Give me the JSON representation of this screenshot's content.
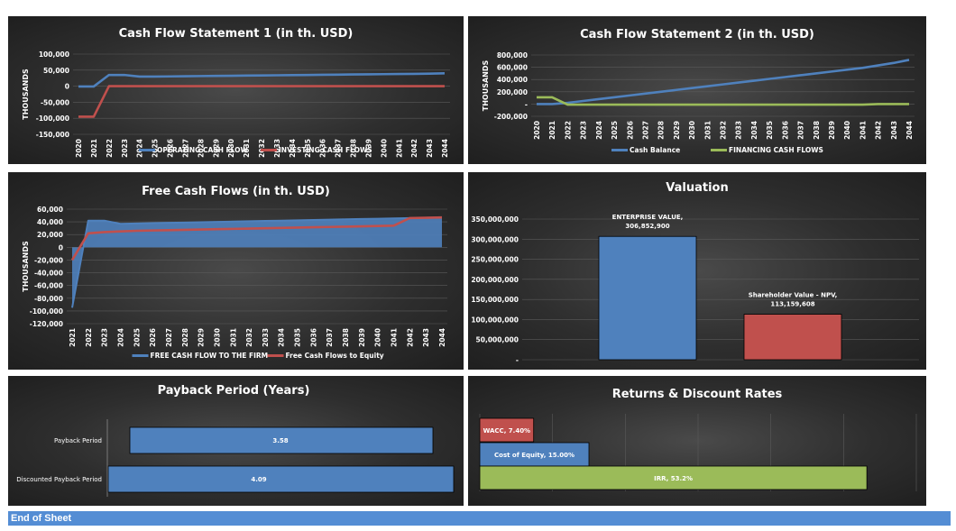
{
  "colors": {
    "blue": "#4f81bd",
    "blue_fill": "#3a6fb8",
    "red": "#c0504d",
    "green": "#9bbb59",
    "text": "#ffffff",
    "grid": "#5a5a5a"
  },
  "footer": {
    "label": "End of Sheet"
  },
  "chart_data": [
    {
      "id": "cf1",
      "type": "line",
      "title": "Cash Flow Statement 1 (in th. USD)",
      "ylabel": "THOUSANDS",
      "ylim": [
        -150000,
        100000
      ],
      "yticks": [
        -150000,
        -100000,
        -50000,
        0,
        50000,
        100000
      ],
      "ytick_labels": [
        "-150,000",
        "-100,000",
        "-50,000",
        "0",
        "50,000",
        "100,000"
      ],
      "x": [
        "2020",
        "2021",
        "2022",
        "2023",
        "2024",
        "2025",
        "2026",
        "2027",
        "2028",
        "2029",
        "2030",
        "2031",
        "2032",
        "2033",
        "2034",
        "2035",
        "2036",
        "2037",
        "2038",
        "2039",
        "2040",
        "2041",
        "2042",
        "2043",
        "2044"
      ],
      "legend": "bottom",
      "series": [
        {
          "name": "OPERATING CASH FLOW",
          "color": "#4f81bd",
          "values": [
            -1000,
            -1000,
            35000,
            35000,
            30000,
            30000,
            30500,
            31000,
            31500,
            32000,
            32500,
            33000,
            33500,
            34000,
            34500,
            35000,
            35500,
            36000,
            36500,
            37000,
            37500,
            38000,
            38500,
            39000,
            40000
          ]
        },
        {
          "name": "INVESTING CASH FLOWS",
          "color": "#c0504d",
          "values": [
            -95000,
            -95000,
            0,
            0,
            0,
            0,
            0,
            0,
            0,
            0,
            0,
            0,
            0,
            0,
            0,
            0,
            0,
            0,
            0,
            0,
            0,
            0,
            0,
            0,
            0
          ]
        }
      ]
    },
    {
      "id": "cf2",
      "type": "line",
      "title": "Cash Flow Statement 2 (in th. USD)",
      "ylabel": "THOUSANDS",
      "ylim": [
        -200000,
        800000
      ],
      "yticks": [
        -200000,
        0,
        200000,
        400000,
        600000,
        800000
      ],
      "ytick_labels": [
        "-200,000",
        "-",
        "200,000",
        "400,000",
        "600,000",
        "800,000"
      ],
      "x": [
        "2020",
        "2021",
        "2022",
        "2023",
        "2024",
        "2025",
        "2026",
        "2027",
        "2028",
        "2029",
        "2030",
        "2031",
        "2032",
        "2033",
        "2034",
        "2035",
        "2036",
        "2037",
        "2038",
        "2039",
        "2040",
        "2041",
        "2042",
        "2043",
        "2044"
      ],
      "legend": "bottom",
      "series": [
        {
          "name": "Cash Balance",
          "color": "#4f81bd",
          "values": [
            0,
            0,
            20000,
            50000,
            80000,
            110000,
            140000,
            170000,
            200000,
            230000,
            260000,
            290000,
            320000,
            350000,
            380000,
            410000,
            440000,
            470000,
            500000,
            530000,
            560000,
            590000,
            630000,
            670000,
            720000
          ]
        },
        {
          "name": "FINANCING CASH FLOWS",
          "color": "#9bbb59",
          "values": [
            110000,
            110000,
            -10000,
            -10000,
            -10000,
            -10000,
            -10000,
            -10000,
            -10000,
            -10000,
            -10000,
            -10000,
            -10000,
            -10000,
            -10000,
            -10000,
            -10000,
            -10000,
            -10000,
            -10000,
            -10000,
            -10000,
            0,
            0,
            0
          ]
        }
      ]
    },
    {
      "id": "fcf",
      "type": "area",
      "title": "Free Cash Flows (in th. USD)",
      "ylabel": "THOUSANDS",
      "ylim": [
        -120000,
        60000
      ],
      "yticks": [
        -120000,
        -100000,
        -80000,
        -60000,
        -40000,
        -20000,
        0,
        20000,
        40000,
        60000
      ],
      "ytick_labels": [
        "-120,000",
        "-100,000",
        "-80,000",
        "-60,000",
        "-40,000",
        "-20,000",
        "0",
        "20,000",
        "40,000",
        "60,000"
      ],
      "x": [
        "2021",
        "2022",
        "2023",
        "2024",
        "2025",
        "2026",
        "2027",
        "2028",
        "2029",
        "2030",
        "2031",
        "2032",
        "2033",
        "2034",
        "2035",
        "2036",
        "2037",
        "2038",
        "2039",
        "2040",
        "2041",
        "2042",
        "2043",
        "2044"
      ],
      "legend": "bottom",
      "series": [
        {
          "name": "FREE CASH FLOW TO THE FIRM",
          "color": "#4f81bd",
          "values": [
            -95000,
            42000,
            42000,
            37000,
            37500,
            38000,
            38500,
            39000,
            39500,
            40000,
            40500,
            41000,
            41500,
            42000,
            42500,
            43000,
            43500,
            44000,
            44500,
            45000,
            45500,
            46000,
            46500,
            47000
          ]
        },
        {
          "name": "Free Cash Flows to Equity",
          "color": "#c0504d",
          "values": [
            -20000,
            22000,
            24000,
            25000,
            26000,
            26500,
            27000,
            27500,
            28000,
            28500,
            29000,
            29500,
            30000,
            30500,
            31000,
            31500,
            32000,
            32500,
            33000,
            33500,
            34000,
            46000,
            46500,
            47000
          ]
        }
      ]
    },
    {
      "id": "valuation",
      "type": "bar",
      "title": "Valuation",
      "ylim": [
        0,
        350000000
      ],
      "yticks": [
        0,
        50000000,
        100000000,
        150000000,
        200000000,
        250000000,
        300000000,
        350000000
      ],
      "ytick_labels": [
        "-",
        "50,000,000",
        "100,000,000",
        "150,000,000",
        "200,000,000",
        "250,000,000",
        "300,000,000",
        "350,000,000"
      ],
      "categories": [
        "ENTERPRISE VALUE",
        "Shareholder Value - NPV"
      ],
      "values": [
        306852900,
        113159608
      ],
      "data_labels": [
        "ENTERPRISE VALUE,",
        "Shareholder Value - NPV,"
      ],
      "data_values": [
        "306,852,900",
        "113,159,608"
      ],
      "colors": [
        "#4f81bd",
        "#c0504d"
      ]
    },
    {
      "id": "payback",
      "type": "bar",
      "orientation": "horizontal",
      "title": "Payback Period (Years)",
      "categories": [
        "Payback Period",
        "Discounted Payback Period"
      ],
      "values": [
        3.58,
        4.09
      ],
      "data_labels": [
        "3.58",
        "4.09"
      ],
      "colors": [
        "#4f81bd",
        "#4f81bd"
      ]
    },
    {
      "id": "returns",
      "type": "bar",
      "orientation": "horizontal",
      "title": "Returns & Discount Rates",
      "categories": [
        "WACC",
        "Cost of Equity",
        "IRR"
      ],
      "values": [
        0.074,
        0.15,
        0.532
      ],
      "data_labels": [
        "WACC, 7.40%",
        "Cost of Equity, 15.00%",
        "IRR, 53.2%"
      ],
      "colors": [
        "#c0504d",
        "#4f81bd",
        "#9bbb59"
      ]
    }
  ]
}
